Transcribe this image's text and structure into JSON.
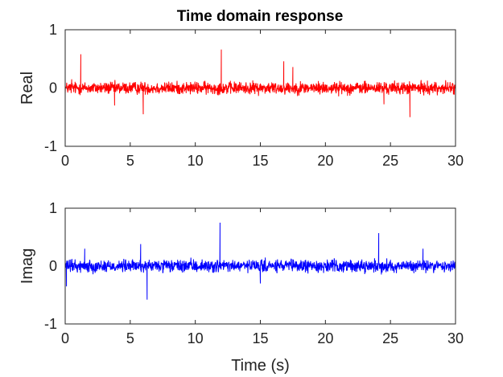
{
  "chart_data": [
    {
      "type": "line",
      "title": "Time domain response",
      "xlabel": "",
      "ylabel": "Real",
      "xlim": [
        0,
        30
      ],
      "ylim": [
        -1,
        1
      ],
      "xticks": [
        0,
        5,
        10,
        15,
        20,
        25,
        30
      ],
      "yticks": [
        -1,
        0,
        1
      ],
      "grid": false,
      "color": "#ff0000",
      "series": [
        {
          "noise_amplitude": 0.1,
          "points": [
            [
              0,
              0
            ],
            [
              0.5,
              0.15
            ],
            [
              1.2,
              0.58
            ],
            [
              3.8,
              -0.3
            ],
            [
              6.0,
              -0.45
            ],
            [
              12.0,
              0.66
            ],
            [
              16.8,
              0.46
            ],
            [
              17.5,
              0.36
            ],
            [
              24.5,
              -0.28
            ],
            [
              26.5,
              -0.5
            ],
            [
              30,
              0
            ]
          ]
        }
      ]
    },
    {
      "type": "line",
      "title": "",
      "xlabel": "Time (s)",
      "ylabel": "Imag",
      "xlim": [
        0,
        30
      ],
      "ylim": [
        -1,
        1
      ],
      "xticks": [
        0,
        5,
        10,
        15,
        20,
        25,
        30
      ],
      "yticks": [
        -1,
        0,
        1
      ],
      "grid": false,
      "color": "#0000ff",
      "series": [
        {
          "noise_amplitude": 0.1,
          "points": [
            [
              0,
              0
            ],
            [
              0.1,
              -0.35
            ],
            [
              1.5,
              0.3
            ],
            [
              5.8,
              0.38
            ],
            [
              6.3,
              -0.58
            ],
            [
              11.9,
              0.75
            ],
            [
              15.0,
              -0.3
            ],
            [
              24.1,
              0.57
            ],
            [
              27.5,
              0.3
            ],
            [
              30,
              0
            ]
          ]
        }
      ]
    }
  ]
}
